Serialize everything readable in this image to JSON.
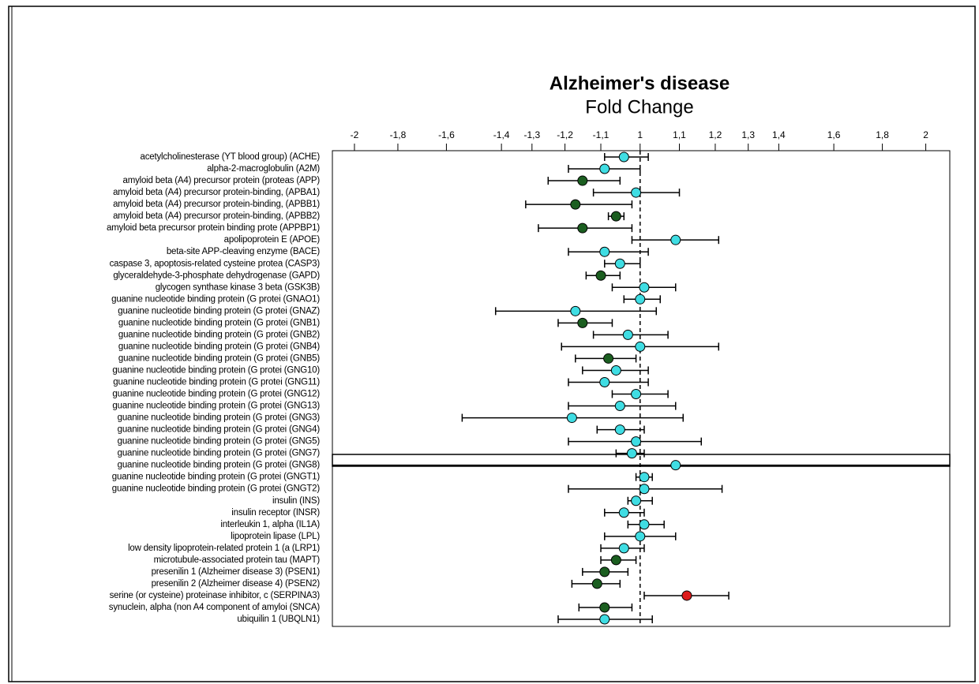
{
  "chart_data": {
    "type": "forest",
    "title": "Alzheimer's disease",
    "subtitle": "Fold Change",
    "xscale": "signed-log2",
    "xlim": [
      -2.11,
      2.12
    ],
    "xticks": [
      -2,
      {
        "value": -1.8,
        "label": "-1,8"
      },
      {
        "value": -1.6,
        "label": "-1,6"
      },
      {
        "value": -1.4,
        "label": "-1,4"
      },
      {
        "value": -1.3,
        "label": "-1,3"
      },
      {
        "value": -1.2,
        "label": "-1,2"
      },
      {
        "value": -1.1,
        "label": "-1,1"
      },
      1,
      {
        "value": 1.1,
        "label": "1,1"
      },
      {
        "value": 1.2,
        "label": "1,2"
      },
      {
        "value": 1.3,
        "label": "1,3"
      },
      {
        "value": 1.4,
        "label": "1,4"
      },
      {
        "value": 1.6,
        "label": "1,6"
      },
      {
        "value": 1.8,
        "label": "1,8"
      },
      2
    ],
    "reference_line": 1,
    "categories": [
      "acetylcholinesterase (YT blood group) (ACHE)",
      "alpha-2-macroglobulin (A2M)",
      "amyloid beta (A4) precursor protein (proteas (APP)",
      "amyloid beta (A4) precursor protein-binding, (APBA1)",
      "amyloid beta (A4) precursor protein-binding, (APBB1)",
      "amyloid beta (A4) precursor protein-binding, (APBB2)",
      "amyloid beta precursor protein binding prote (APPBP1)",
      "apolipoprotein E (APOE)",
      "beta-site APP-cleaving enzyme (BACE)",
      "caspase 3, apoptosis-related cysteine protea (CASP3)",
      "glyceraldehyde-3-phosphate dehydrogenase (GAPD)",
      "glycogen synthase kinase 3 beta (GSK3B)",
      "guanine nucleotide binding protein (G protei (GNAO1)",
      "guanine nucleotide binding protein (G protei (GNAZ)",
      "guanine nucleotide binding protein (G protei (GNB1)",
      "guanine nucleotide binding protein (G protei (GNB2)",
      "guanine nucleotide binding protein (G protei (GNB4)",
      "guanine nucleotide binding protein (G protei (GNB5)",
      "guanine nucleotide binding protein (G protei (GNG10)",
      "guanine nucleotide binding protein (G protei (GNG11)",
      "guanine nucleotide binding protein (G protei (GNG12)",
      "guanine nucleotide binding protein (G protei (GNG13)",
      "guanine nucleotide binding protein (G protei (GNG3)",
      "guanine nucleotide binding protein (G protei (GNG4)",
      "guanine nucleotide binding protein (G protei (GNG5)",
      "guanine nucleotide binding protein (G protei (GNG7)",
      "guanine nucleotide binding protein (G protei (GNG8)",
      "guanine nucleotide binding protein (G protei (GNGT1)",
      "guanine nucleotide binding protein (G protei (GNGT2)",
      "insulin (INS)",
      "insulin receptor (INSR)",
      "interleukin 1, alpha (IL1A)",
      "lipoprotein lipase (LPL)",
      "low density lipoprotein-related protein 1 (a (LRP1)",
      "microtubule-associated protein tau (MAPT)",
      "presenilin 1 (Alzheimer disease 3) (PSEN1)",
      "presenilin 2 (Alzheimer disease 4) (PSEN2)",
      "serine (or cysteine) proteinase inhibitor, c (SERPINA3)",
      "synuclein, alpha (non A4 component of amyloi (SNCA)",
      "ubiquilin 1 (UBQLN1)"
    ],
    "values": [
      -1.04,
      -1.09,
      -1.15,
      -1.01,
      -1.17,
      -1.06,
      -1.15,
      1.09,
      -1.09,
      -1.05,
      -1.1,
      1.01,
      1.0,
      -1.17,
      -1.15,
      -1.03,
      1.0,
      -1.08,
      -1.06,
      -1.09,
      -1.01,
      -1.05,
      -1.18,
      -1.05,
      -1.01,
      -1.02,
      1.09,
      1.01,
      1.01,
      -1.01,
      -1.04,
      1.01,
      1.0,
      -1.04,
      -1.06,
      -1.09,
      -1.11,
      1.12,
      -1.09,
      -1.09
    ],
    "lower": [
      -1.09,
      -1.19,
      -1.25,
      -1.12,
      -1.32,
      -1.08,
      -1.28,
      -1.02,
      -1.19,
      -1.09,
      -1.14,
      -1.07,
      -1.04,
      -1.42,
      -1.22,
      -1.12,
      -1.21,
      -1.17,
      -1.15,
      -1.19,
      -1.07,
      -1.19,
      -1.54,
      -1.11,
      -1.19,
      -1.06,
      -2.2,
      -1.01,
      -1.19,
      -1.03,
      -1.09,
      -1.03,
      -1.09,
      -1.1,
      -1.1,
      -1.15,
      -1.18,
      1.01,
      -1.16,
      -1.22
    ],
    "upper": [
      1.02,
      1.0,
      -1.05,
      1.1,
      -1.02,
      -1.04,
      -1.02,
      1.21,
      1.02,
      -1.0,
      -1.05,
      1.09,
      1.05,
      1.04,
      -1.07,
      1.07,
      1.21,
      -1.01,
      1.02,
      1.02,
      1.07,
      1.09,
      1.11,
      1.01,
      1.16,
      1.01,
      2.2,
      1.03,
      1.22,
      1.03,
      1.01,
      1.06,
      1.09,
      1.01,
      -1.01,
      -1.03,
      -1.05,
      1.24,
      -1.02,
      1.03
    ],
    "colors": [
      "#3fdde3",
      "#3fdde3",
      "#1b5e20",
      "#3fdde3",
      "#1b5e20",
      "#1b5e20",
      "#1b5e20",
      "#3fdde3",
      "#3fdde3",
      "#3fdde3",
      "#1b5e20",
      "#3fdde3",
      "#3fdde3",
      "#3fdde3",
      "#1b5e20",
      "#3fdde3",
      "#3fdde3",
      "#1b5e20",
      "#3fdde3",
      "#3fdde3",
      "#3fdde3",
      "#3fdde3",
      "#3fdde3",
      "#3fdde3",
      "#3fdde3",
      "#3fdde3",
      "#3fdde3",
      "#3fdde3",
      "#3fdde3",
      "#3fdde3",
      "#3fdde3",
      "#3fdde3",
      "#3fdde3",
      "#3fdde3",
      "#1b5e20",
      "#1b5e20",
      "#1b5e20",
      "#dd1a1a",
      "#1b5e20",
      "#3fdde3"
    ]
  }
}
